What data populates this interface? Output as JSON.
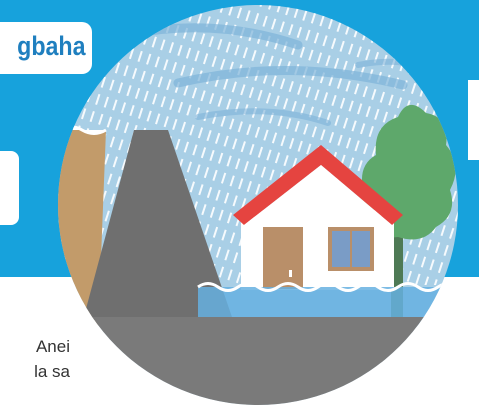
{
  "banner": {
    "title": "gbaha",
    "background_color": "#17a2dc",
    "title_color": "#1f7fbf"
  },
  "body_text": {
    "line_1": "Anei",
    "line_2": "la sa"
  },
  "illustration": {
    "subject": "flooded house beside an overflowing dam in heavy rain",
    "icons": [
      "rain-icon",
      "dam-icon",
      "house-icon",
      "tree-icon",
      "flood-water-icon"
    ],
    "colors": {
      "sky": "#a9cfe6",
      "rain": "#ffffff",
      "dam": "#6f6f6f",
      "reservoir": "#c29b6a",
      "roof": "#e54440",
      "house_wall": "#ffffff",
      "door": "#b98f69",
      "window": "#7a9cc6",
      "tree": "#5ea86b",
      "water": "#66b0e0",
      "ground": "#7a7a7a"
    }
  }
}
